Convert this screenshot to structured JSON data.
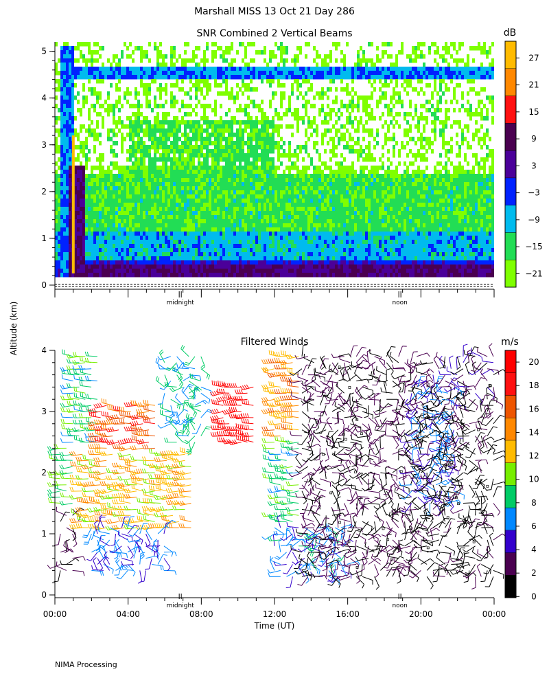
{
  "header": {
    "title": "Marshall MISS   13 Oct 21 Day 286"
  },
  "shared": {
    "ylabel": "Altitude (km)",
    "midnight": "midnight",
    "noon": "noon"
  },
  "footer": {
    "text": "NIMA Processing"
  },
  "chart_data": [
    {
      "type": "heatmap",
      "title": "SNR Combined 2 Vertical Beams",
      "ylabel": "Altitude (km)",
      "ylim": [
        0,
        5.2
      ],
      "yticks": [
        "0",
        "1",
        "2",
        "3",
        "4",
        "5"
      ],
      "xlim_hours": [
        0,
        24
      ],
      "colorbar": {
        "unit": "dB",
        "labels": [
          "27",
          "21",
          "15",
          "9",
          "3",
          "−3",
          "−9",
          "−15",
          "−21"
        ],
        "range": [
          -21,
          33
        ],
        "colors": [
          "#7fff00",
          "#22dd55",
          "#00bbee",
          "#0022ff",
          "#4b0099",
          "#4a0050",
          "#ff1111",
          "#ff8800",
          "#ffbb00"
        ]
      },
      "markers": [
        {
          "label": "midnight",
          "hour": 6.85
        },
        {
          "label": "noon",
          "hour": 18.85
        }
      ],
      "bands": [
        {
          "from_h": 0.25,
          "to_h": 0.9,
          "alt_lo": 0.25,
          "alt_hi": 5.2,
          "level": -3
        },
        {
          "from_h": 0.7,
          "to_h": 1.6,
          "alt_lo": 0.25,
          "alt_hi": 2.6,
          "level": 9
        },
        {
          "from_h": 0.9,
          "to_h": 1.0,
          "alt_lo": 0.25,
          "alt_hi": 3.2,
          "level": 27
        },
        {
          "from_h": 1.0,
          "to_h": 24,
          "alt_lo": 0.25,
          "alt_hi": 0.45,
          "level": 9
        },
        {
          "from_h": 1.0,
          "to_h": 24,
          "alt_lo": 4.45,
          "alt_hi": 4.65,
          "level": -3
        }
      ]
    },
    {
      "type": "wind_barbs",
      "title": "Filtered Winds",
      "xlabel": "Time (UT)",
      "ylabel": "Altitude (km)",
      "ylim": [
        0,
        4
      ],
      "yticks": [
        "0",
        "1",
        "2",
        "3",
        "4"
      ],
      "xticks": [
        "00:00",
        "04:00",
        "08:00",
        "12:00",
        "16:00",
        "20:00",
        "00:00"
      ],
      "xlim_hours": [
        0,
        24
      ],
      "colorbar": {
        "unit": "m/s",
        "labels": [
          "20",
          "18",
          "16",
          "14",
          "12",
          "10",
          "8",
          "6",
          "4",
          "2",
          "0"
        ],
        "range": [
          0,
          22
        ],
        "colors": [
          "#000000",
          "#4a0050",
          "#3300cc",
          "#0088ff",
          "#00cc66",
          "#77ee00",
          "#ffbb00",
          "#ff8800",
          "#ee5500",
          "#ff1111",
          "#ff0000"
        ]
      },
      "markers": [
        {
          "label": "midnight",
          "hour": 6.85
        },
        {
          "label": "noon",
          "hour": 18.85
        }
      ],
      "wind_regions": [
        {
          "from_h": 0.3,
          "to_h": 1.0,
          "alt_lo": 1.5,
          "alt_hi": 2.5,
          "speed": 10
        },
        {
          "from_h": 0.3,
          "to_h": 1.0,
          "alt_lo": 0.4,
          "alt_hi": 1.5,
          "speed": 2
        },
        {
          "from_h": 1.0,
          "to_h": 2.5,
          "alt_lo": 2.5,
          "alt_hi": 4.0,
          "speed": 9
        },
        {
          "from_h": 1.5,
          "to_h": 7.5,
          "alt_lo": 1.1,
          "alt_hi": 2.4,
          "speed": 13
        },
        {
          "from_h": 2.5,
          "to_h": 5.5,
          "alt_lo": 2.4,
          "alt_hi": 3.2,
          "speed": 17
        },
        {
          "from_h": 2.0,
          "to_h": 6.0,
          "alt_lo": 0.4,
          "alt_hi": 1.1,
          "speed": 6
        },
        {
          "from_h": 6.0,
          "to_h": 8.0,
          "alt_lo": 2.5,
          "alt_hi": 4.0,
          "speed": 8
        },
        {
          "from_h": 9.2,
          "to_h": 11.0,
          "alt_lo": 2.5,
          "alt_hi": 3.5,
          "speed": 20
        },
        {
          "from_h": 12.0,
          "to_h": 13.5,
          "alt_lo": 2.6,
          "alt_hi": 4.0,
          "speed": 15
        },
        {
          "from_h": 12.0,
          "to_h": 13.5,
          "alt_lo": 1.2,
          "alt_hi": 2.6,
          "speed": 9
        },
        {
          "from_h": 12.0,
          "to_h": 16.0,
          "alt_lo": 0.3,
          "alt_hi": 1.2,
          "speed": 7
        },
        {
          "from_h": 13.5,
          "to_h": 20.0,
          "alt_lo": 0.3,
          "alt_hi": 4.0,
          "speed": 2
        },
        {
          "from_h": 19.5,
          "to_h": 22.0,
          "alt_lo": 1.5,
          "alt_hi": 3.5,
          "speed": 6
        },
        {
          "from_h": 20.0,
          "to_h": 24.0,
          "alt_lo": 3.3,
          "alt_hi": 4.0,
          "speed": 3
        },
        {
          "from_h": 20.0,
          "to_h": 24.0,
          "alt_lo": 0.3,
          "alt_hi": 3.3,
          "speed": 1
        }
      ]
    }
  ]
}
